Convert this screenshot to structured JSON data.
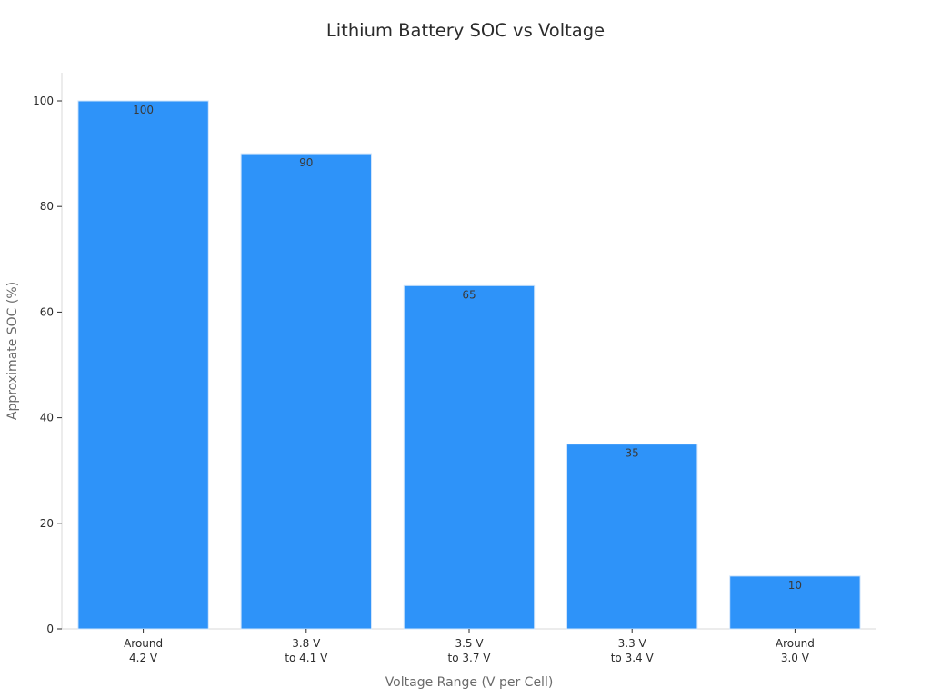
{
  "chart_data": {
    "type": "bar",
    "title": "Lithium Battery SOC vs Voltage",
    "xlabel": "Voltage Range (V per Cell)",
    "ylabel": "Approximate SOC (%)",
    "categories": [
      [
        "Around",
        "4.2 V"
      ],
      [
        "3.8 V",
        "to 4.1 V"
      ],
      [
        "3.5 V",
        "to 3.7 V"
      ],
      [
        "3.3 V",
        "to 3.4 V"
      ],
      [
        "Around",
        "3.0 V"
      ]
    ],
    "values": [
      100,
      90,
      65,
      35,
      10
    ],
    "data_labels": [
      "100",
      "90",
      "65",
      "35",
      "10"
    ],
    "yticks": [
      0,
      20,
      40,
      60,
      80,
      100
    ],
    "ylim": [
      0,
      105
    ],
    "grid": false,
    "legend": "none",
    "bar_color": "#2e93f9"
  }
}
